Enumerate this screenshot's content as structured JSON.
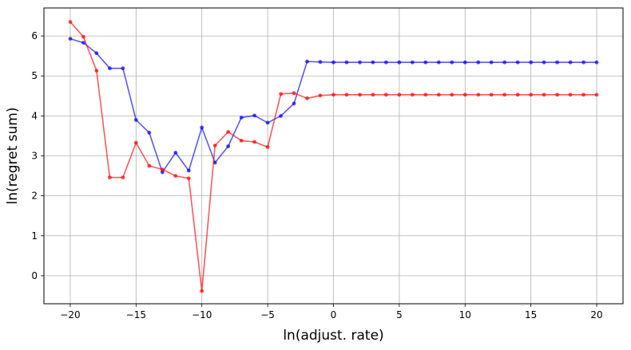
{
  "chart_data": {
    "type": "line",
    "xlabel": "ln(adjust. rate)",
    "ylabel": "ln(regret sum)",
    "xlim": [
      -22,
      22
    ],
    "ylim": [
      -0.7,
      6.7
    ],
    "xticks": [
      -20,
      -15,
      -10,
      -5,
      0,
      5,
      10,
      15,
      20
    ],
    "yticks": [
      0,
      1,
      2,
      3,
      4,
      5,
      6
    ],
    "grid": true,
    "x": [
      -20,
      -19,
      -18,
      -17,
      -16,
      -15,
      -14,
      -13,
      -12,
      -11,
      -10,
      -9,
      -8,
      -7,
      -6,
      -5,
      -4,
      -3,
      -2,
      -1,
      0,
      1,
      2,
      3,
      4,
      5,
      6,
      7,
      8,
      9,
      10,
      11,
      12,
      13,
      14,
      15,
      16,
      17,
      18,
      19,
      20
    ],
    "series": [
      {
        "color": "#0000ff",
        "values": [
          5.93,
          5.83,
          5.57,
          5.19,
          5.19,
          3.9,
          3.58,
          2.59,
          3.08,
          2.63,
          3.71,
          2.83,
          3.24,
          3.96,
          4.01,
          3.83,
          4.0,
          4.31,
          5.36,
          5.35,
          5.34,
          5.34,
          5.34,
          5.34,
          5.34,
          5.34,
          5.34,
          5.34,
          5.34,
          5.34,
          5.34,
          5.34,
          5.34,
          5.34,
          5.34,
          5.34,
          5.34,
          5.34,
          5.34,
          5.34,
          5.34
        ]
      },
      {
        "color": "#ff0000",
        "values": [
          6.35,
          5.98,
          5.13,
          2.46,
          2.46,
          3.33,
          2.75,
          2.66,
          2.5,
          2.44,
          -0.38,
          3.26,
          3.6,
          3.38,
          3.35,
          3.22,
          4.55,
          4.57,
          4.44,
          4.51,
          4.53,
          4.53,
          4.53,
          4.53,
          4.53,
          4.53,
          4.53,
          4.53,
          4.53,
          4.53,
          4.53,
          4.53,
          4.53,
          4.53,
          4.53,
          4.53,
          4.53,
          4.53,
          4.53,
          4.53,
          4.53
        ]
      }
    ]
  }
}
